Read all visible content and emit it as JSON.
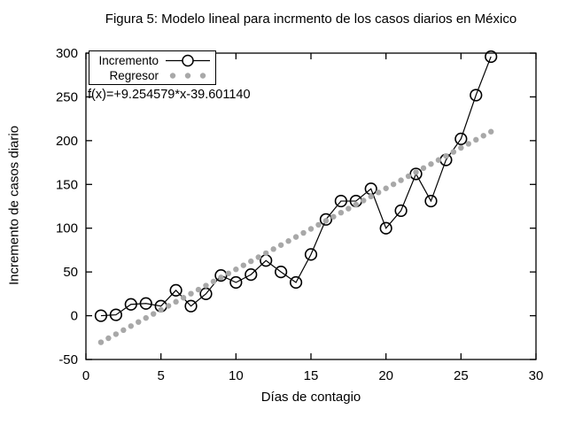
{
  "chart_data": {
    "type": "line",
    "title": "Figura 5: Modelo lineal para incrmento de los casos diarios en México",
    "xlabel": "Días de contagio",
    "ylabel": "Incremento de casos diario",
    "xlim": [
      0,
      30
    ],
    "ylim": [
      -50,
      300
    ],
    "xticks": [
      0,
      5,
      10,
      15,
      20,
      25,
      30
    ],
    "yticks": [
      -50,
      0,
      50,
      100,
      150,
      200,
      250,
      300
    ],
    "grid": false,
    "legend_position": "top-left",
    "annotation": "f(x)=+9.254579*x-39.601140",
    "colors": {
      "incremento": "#000000",
      "regresor": "#a8a8a8",
      "background": "#ffffff"
    },
    "series": [
      {
        "name": "Incremento",
        "type": "line+open-circle-markers",
        "color": "#000000",
        "x": [
          1,
          2,
          3,
          4,
          5,
          6,
          7,
          8,
          9,
          10,
          11,
          12,
          13,
          14,
          15,
          16,
          17,
          18,
          19,
          20,
          21,
          22,
          23,
          24,
          25,
          26,
          27
        ],
        "y": [
          0,
          1,
          13,
          14,
          11,
          29,
          11,
          25,
          46,
          38,
          47,
          63,
          50,
          38,
          70,
          110,
          131,
          131,
          145,
          100,
          120,
          162,
          131,
          178,
          202,
          252,
          296
        ]
      },
      {
        "name": "Regresor",
        "type": "dotted-regression-line",
        "color": "#a8a8a8",
        "slope": 9.254579,
        "intercept": -39.60114,
        "x_start": 1,
        "x_end": 27,
        "x_step": 0.5
      }
    ]
  }
}
